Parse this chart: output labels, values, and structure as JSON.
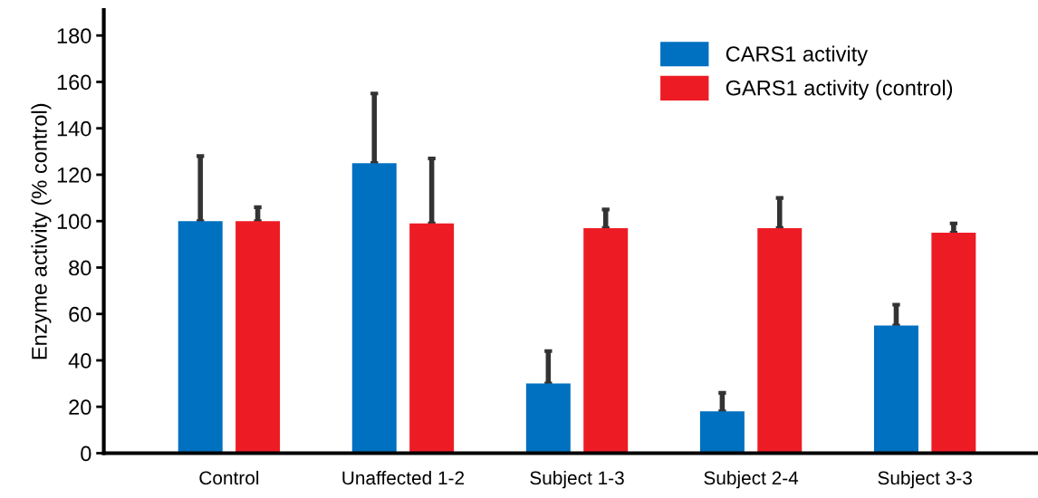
{
  "chart_data": {
    "type": "bar",
    "ylabel": "Enzyme activity (% control)",
    "categories": [
      "Control",
      "Unaffected 1-2",
      "Subject 1-3",
      "Subject 2-4",
      "Subject 3-3"
    ],
    "series": [
      {
        "name": "CARS1 activity",
        "color": "#0070c0",
        "values": [
          100,
          125,
          30,
          18,
          55
        ],
        "errors": [
          [
            100,
            128
          ],
          [
            125,
            155
          ],
          [
            30,
            44
          ],
          [
            18,
            26
          ],
          [
            55,
            64
          ]
        ]
      },
      {
        "name": "GARS1 activity (control)",
        "color": "#ed1c24",
        "values": [
          100,
          99,
          97,
          97,
          95
        ],
        "errors": [
          [
            100,
            106
          ],
          [
            99,
            127
          ],
          [
            97,
            105
          ],
          [
            97,
            110
          ],
          [
            95,
            99
          ]
        ]
      }
    ],
    "ylim": [
      0,
      191
    ],
    "yticks": [
      0,
      20,
      40,
      60,
      80,
      100,
      120,
      140,
      160,
      180
    ],
    "grid": false,
    "legend": "top right"
  }
}
